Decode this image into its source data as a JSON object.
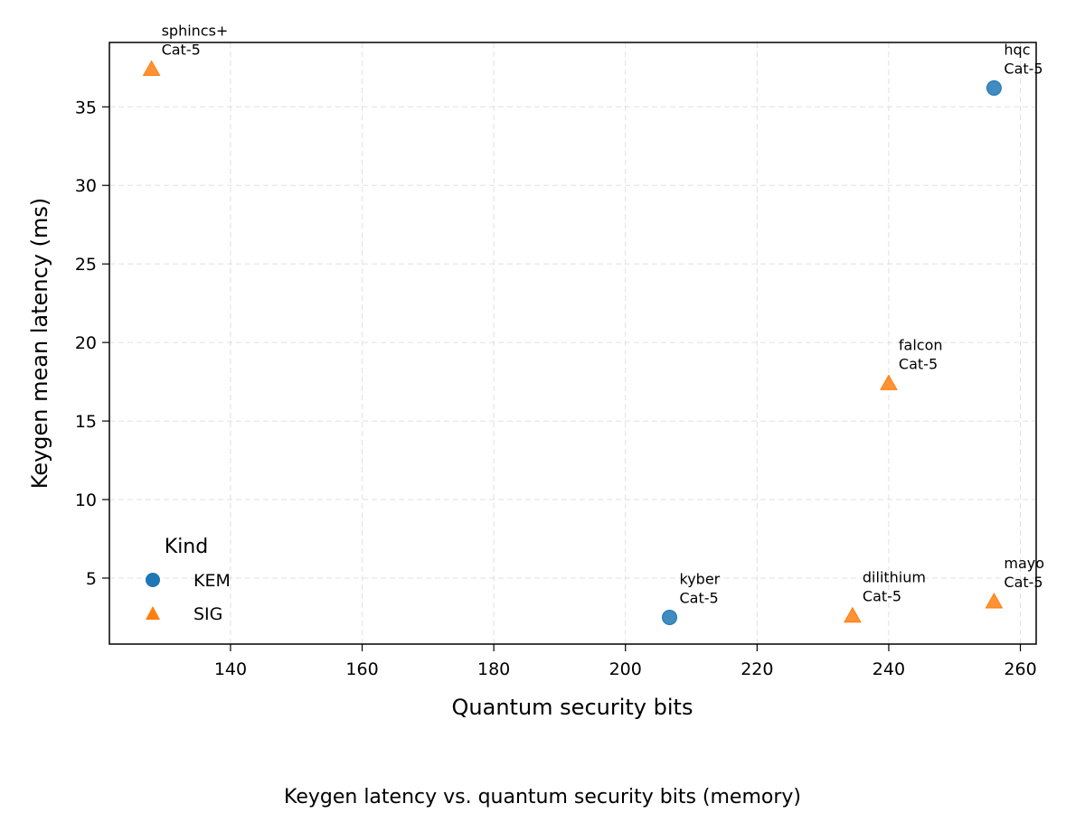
{
  "chart_data": {
    "type": "scatter",
    "caption": "Keygen latency vs. quantum security bits (memory)",
    "xlabel": "Quantum security bits",
    "ylabel": "Keygen mean latency (ms)",
    "xlim": [
      121.6,
      262.4
    ],
    "ylim": [
      0.8,
      39.1
    ],
    "xticks": [
      140,
      160,
      180,
      200,
      220,
      240,
      260
    ],
    "yticks": [
      5,
      10,
      15,
      20,
      25,
      30,
      35
    ],
    "grid": true,
    "legend": {
      "title": "Kind",
      "placement": "lower-left",
      "entries": [
        {
          "name": "KEM",
          "marker": "circle",
          "color": "#1f77b4"
        },
        {
          "name": "SIG",
          "marker": "triangle",
          "color": "#ff7f0e"
        }
      ]
    },
    "points": [
      {
        "name": "sphincs+",
        "category": "Cat-5",
        "kind": "SIG",
        "x": 128,
        "y": 37.4
      },
      {
        "name": "hqc",
        "category": "Cat-5",
        "kind": "KEM",
        "x": 256,
        "y": 36.2
      },
      {
        "name": "falcon",
        "category": "Cat-5",
        "kind": "SIG",
        "x": 240,
        "y": 17.4
      },
      {
        "name": "kyber",
        "category": "Cat-5",
        "kind": "KEM",
        "x": 206.7,
        "y": 2.5
      },
      {
        "name": "dilithium",
        "category": "Cat-5",
        "kind": "SIG",
        "x": 234.5,
        "y": 2.6
      },
      {
        "name": "mayo",
        "category": "Cat-5",
        "kind": "SIG",
        "x": 256,
        "y": 3.5
      }
    ]
  }
}
